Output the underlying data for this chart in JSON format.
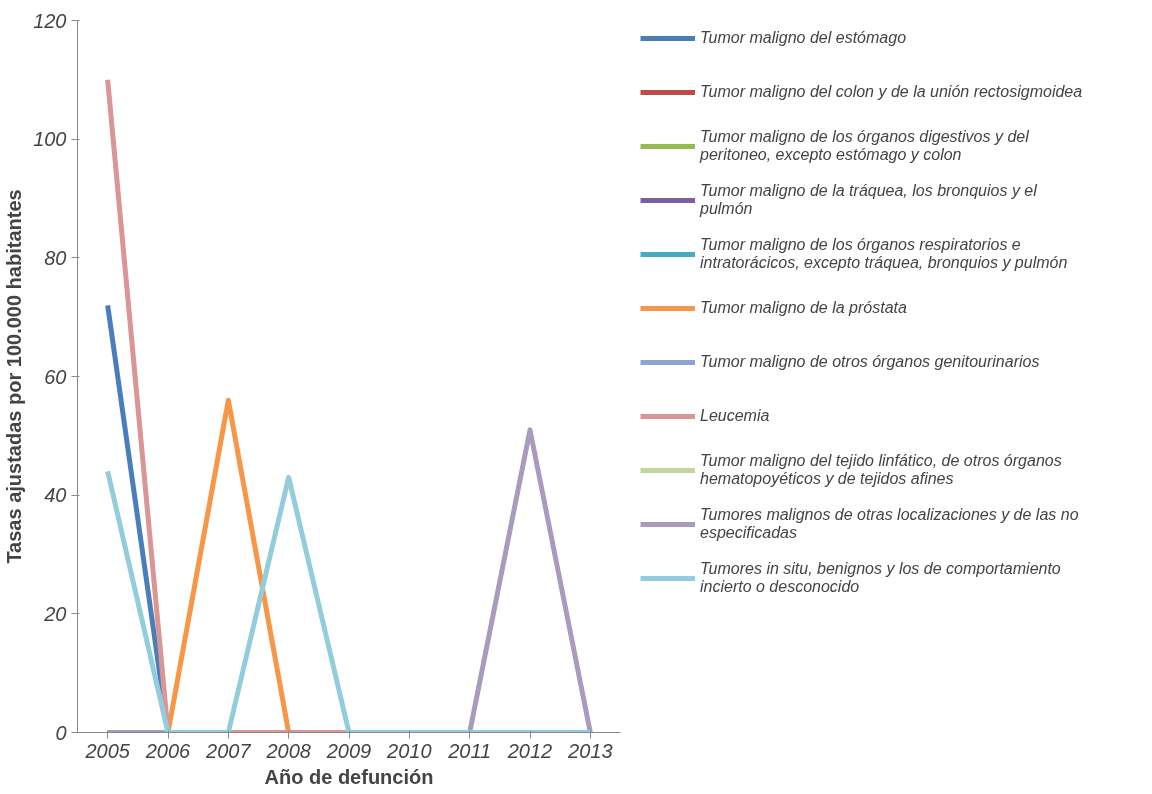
{
  "chart_data": {
    "type": "line",
    "xlabel": "Año de defunción",
    "ylabel": "Tasas ajustadas por 100.000 habitantes",
    "categories": [
      "2005",
      "2006",
      "2007",
      "2008",
      "2009",
      "2010",
      "2011",
      "2012",
      "2013"
    ],
    "ylim": [
      0,
      120
    ],
    "yticks": [
      0,
      20,
      40,
      60,
      80,
      100,
      120
    ],
    "grid": false,
    "legend": "right",
    "line_style": "solid",
    "marker": "none",
    "series": [
      {
        "name": "Tumor maligno del estómago",
        "color": "#4a7ebb",
        "values": [
          72,
          0,
          null,
          null,
          null,
          null,
          null,
          null,
          null
        ]
      },
      {
        "name": "Tumor maligno del colon y de la unión rectosigmoidea",
        "color": "#be4b48",
        "values": [
          null,
          null,
          null,
          null,
          null,
          null,
          null,
          null,
          null
        ]
      },
      {
        "name": "Tumor maligno de los órganos digestivos y del peritoneo, excepto estómago y colon",
        "color": "#98b954",
        "values": [
          null,
          null,
          null,
          null,
          null,
          null,
          null,
          null,
          null
        ]
      },
      {
        "name": "Tumor maligno de la tráquea, los bronquios y el pulmón",
        "color": "#7d60a0",
        "values": [
          null,
          null,
          null,
          null,
          null,
          null,
          null,
          null,
          null
        ]
      },
      {
        "name": "Tumor maligno de los órganos respiratorios e intratorácicos, excepto tráquea, bronquios y pulmón",
        "color": "#46aac5",
        "values": [
          null,
          null,
          null,
          null,
          null,
          null,
          null,
          null,
          null
        ]
      },
      {
        "name": "Tumor maligno de la próstata",
        "color": "#f79646",
        "values": [
          null,
          0,
          56,
          0,
          null,
          null,
          null,
          null,
          null
        ]
      },
      {
        "name": "Tumor maligno de otros órganos genitourinarios",
        "color": "#8ca6d1",
        "values": [
          null,
          null,
          null,
          null,
          null,
          null,
          null,
          null,
          null
        ]
      },
      {
        "name": "Leucemia",
        "color": "#d99694",
        "values": [
          110,
          0,
          0,
          0,
          0,
          null,
          null,
          null,
          null
        ]
      },
      {
        "name": "Tumor maligno del tejido linfático, de otros órganos hematopoyéticos y de tejidos afines",
        "color": "#c3d69b",
        "values": [
          null,
          null,
          null,
          null,
          null,
          null,
          null,
          null,
          null
        ]
      },
      {
        "name": "Tumores malignos de otras localizaciones y de las no especificadas",
        "color": "#a99bbd",
        "values": [
          0,
          0,
          null,
          null,
          null,
          null,
          0,
          51,
          0
        ]
      },
      {
        "name": "Tumores in situ, benignos y los de comportamiento incierto o desconocido",
        "color": "#93cddd",
        "values": [
          44,
          0,
          0,
          43,
          0,
          0,
          0,
          0,
          0
        ]
      }
    ]
  }
}
